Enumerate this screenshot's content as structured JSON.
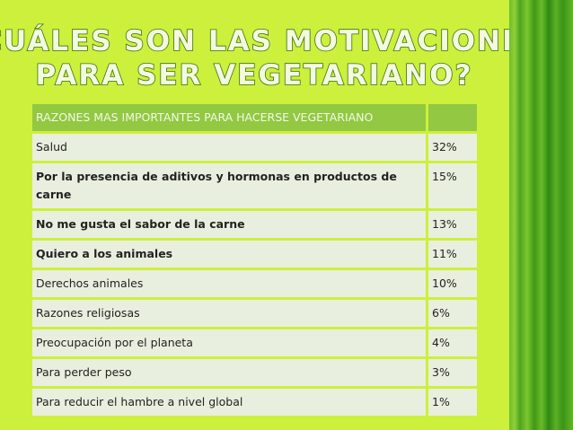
{
  "title": [
    "¿CUÁLES SON LAS MOTIVACIONES",
    "PARA SER VEGETARIANO?"
  ],
  "table": {
    "header": [
      "RAZONES MAS IMPORTANTES PARA HACERSE VEGETARIANO"
    ],
    "rows": [
      [
        "Salud",
        "32%"
      ],
      [
        "Por la presencia de aditivos y hormonas en productos de carne",
        "15%"
      ],
      [
        "No me gusta el sabor de la carne",
        "13%"
      ],
      [
        "Quiero a los animales",
        "11%"
      ],
      [
        "Derechos animales",
        "10%"
      ],
      [
        "Razones religiosas",
        "6%"
      ],
      [
        "Preocupación  por  el planeta",
        "4%"
      ],
      [
        "Para perder peso",
        "3%"
      ],
      [
        "Para reducir el hambre a nivel global",
        "1%"
      ]
    ]
  }
}
